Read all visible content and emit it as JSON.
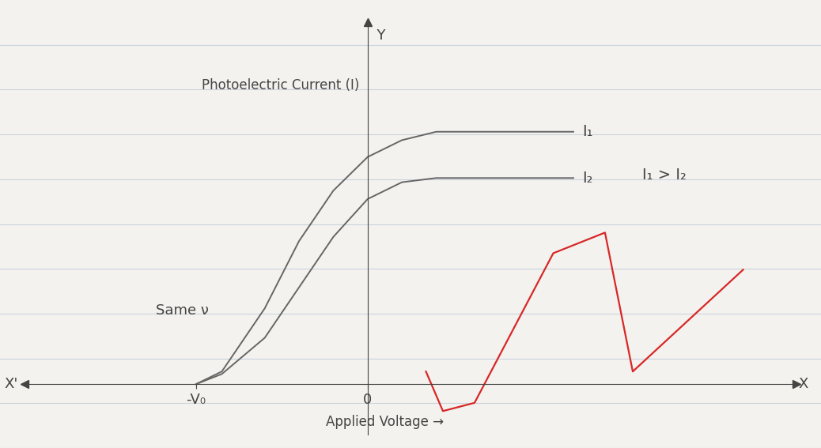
{
  "chart_data": {
    "type": "line",
    "x_label": "Applied Voltage →",
    "y_label": "Photoelectric Current (I)",
    "axis_names": {
      "x_pos": "X",
      "x_neg": "X'",
      "y_pos": "Y"
    },
    "annotations": [
      "I₁ > I₂",
      "Same ν"
    ],
    "x": [
      -1.0,
      -0.85,
      -0.6,
      -0.4,
      -0.2,
      0,
      0.2,
      0.4,
      0.7,
      1.2
    ],
    "series": [
      {
        "name": "I₁",
        "color": "#666666",
        "values": [
          0,
          0.15,
          0.9,
          1.7,
          2.3,
          2.7,
          2.9,
          3.0,
          3.0,
          3.0
        ]
      },
      {
        "name": "I₂",
        "color": "#666666",
        "values": [
          0,
          0.12,
          0.55,
          1.15,
          1.75,
          2.2,
          2.4,
          2.45,
          2.45,
          2.45
        ]
      }
    ],
    "xlim": [
      -2.0,
      2.5
    ],
    "ylim": [
      -0.6,
      4.3
    ],
    "xticks": [
      {
        "value": -1.0,
        "label": "-V₀"
      },
      0
    ],
    "yticks": [],
    "tick_labels": "x",
    "grid": false
  }
}
